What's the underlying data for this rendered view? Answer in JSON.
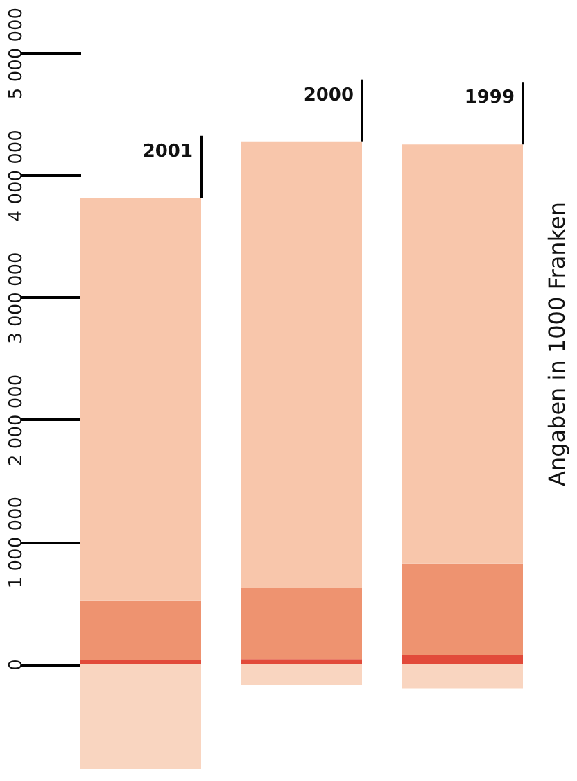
{
  "chart_data": {
    "type": "bar",
    "stacked": true,
    "categories": [
      "2001",
      "2000",
      "1999"
    ],
    "series": [
      {
        "color": "#f9d5c0",
        "values": [
          -860000,
          -170000,
          -200000
        ]
      },
      {
        "color": "#e24a3a",
        "values": [
          30000,
          40000,
          70000
        ]
      },
      {
        "color": "#ee9370",
        "values": [
          490000,
          580000,
          750000
        ]
      },
      {
        "color": "#f8c6ab",
        "values": [
          3290000,
          3650000,
          3430000
        ]
      }
    ],
    "ylabel": "Angaben in 1000 Franken",
    "ylim": [
      -900000,
      5000000
    ],
    "yticks": [
      {
        "value": 0,
        "label": "0"
      },
      {
        "value": 1000000,
        "label": "1 000 000"
      },
      {
        "value": 2000000,
        "label": "2 000 000"
      },
      {
        "value": 3000000,
        "label": "3 000 000"
      },
      {
        "value": 4000000,
        "label": "4 000 000"
      },
      {
        "value": 5000000,
        "label": "5 000 000"
      }
    ],
    "tick_labels": "y"
  }
}
